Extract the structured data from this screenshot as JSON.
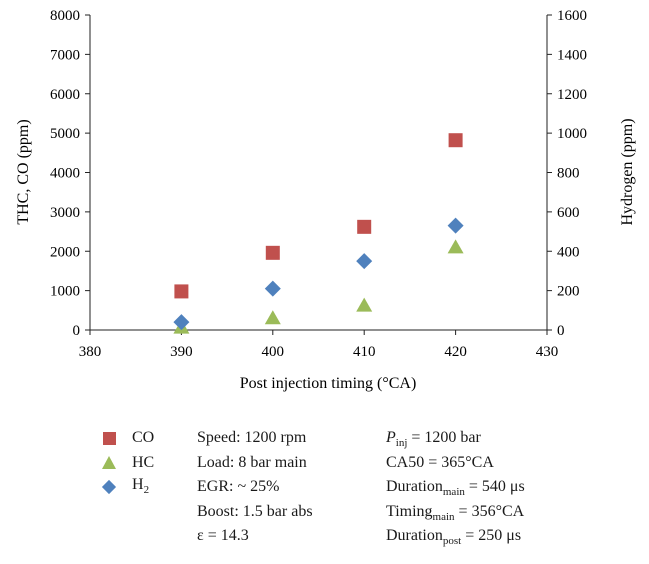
{
  "chart_data": {
    "type": "scatter",
    "xlabel": "Post injection timing (°CA)",
    "ylabel_left": "THC, CO (ppm)",
    "ylabel_right": "Hydrogen (ppm)",
    "xlim": [
      380,
      430
    ],
    "ylim_left": [
      0,
      8000
    ],
    "ylim_right": [
      0,
      1600
    ],
    "x_ticks": [
      "380",
      "390",
      "400",
      "410",
      "420",
      "430"
    ],
    "y_left_ticks": [
      "0",
      "1000",
      "2000",
      "3000",
      "4000",
      "5000",
      "6000",
      "7000",
      "8000"
    ],
    "y_right_ticks": [
      "0",
      "200",
      "400",
      "600",
      "800",
      "1000",
      "1200",
      "1400",
      "1600"
    ],
    "grid": false,
    "series": [
      {
        "name": "CO",
        "axis": "left",
        "marker": "square",
        "color": "#c0504d",
        "x": [
          390,
          400,
          410,
          420
        ],
        "y": [
          980,
          1960,
          2620,
          4820
        ]
      },
      {
        "name": "HC",
        "axis": "left",
        "marker": "triangle",
        "color": "#9bbb59",
        "x": [
          390,
          400,
          410,
          420
        ],
        "y": [
          60,
          300,
          620,
          2100
        ]
      },
      {
        "name": "H2",
        "axis": "right",
        "marker": "diamond",
        "color": "#4f81bd",
        "x": [
          390,
          400,
          410,
          420
        ],
        "y": [
          40,
          210,
          350,
          530
        ]
      }
    ]
  },
  "legend": {
    "co": "CO",
    "hc": "HC",
    "h2_main": "H",
    "h2_sub": "2"
  },
  "conditions": {
    "speed": "Speed: 1200 rpm",
    "load": "Load: 8 bar main",
    "egr": "EGR: ~ 25%",
    "boost": "Boost: 1.5 bar abs",
    "epsilon": "ε = 14.3"
  },
  "params": {
    "pinj_main": "P",
    "pinj_sub": "inj",
    "pinj_value": " = 1200 bar",
    "ca50": "CA50 = 365°CA",
    "dur_main_main": "Duration",
    "dur_main_sub": "main",
    "dur_main_value": " = 540 μs",
    "timing_main_main": "Timing",
    "timing_main_sub": "main",
    "timing_main_value": " = 356°CA",
    "dur_post_main": "Duration",
    "dur_post_sub": "post",
    "dur_post_value": " = 250 μs"
  }
}
